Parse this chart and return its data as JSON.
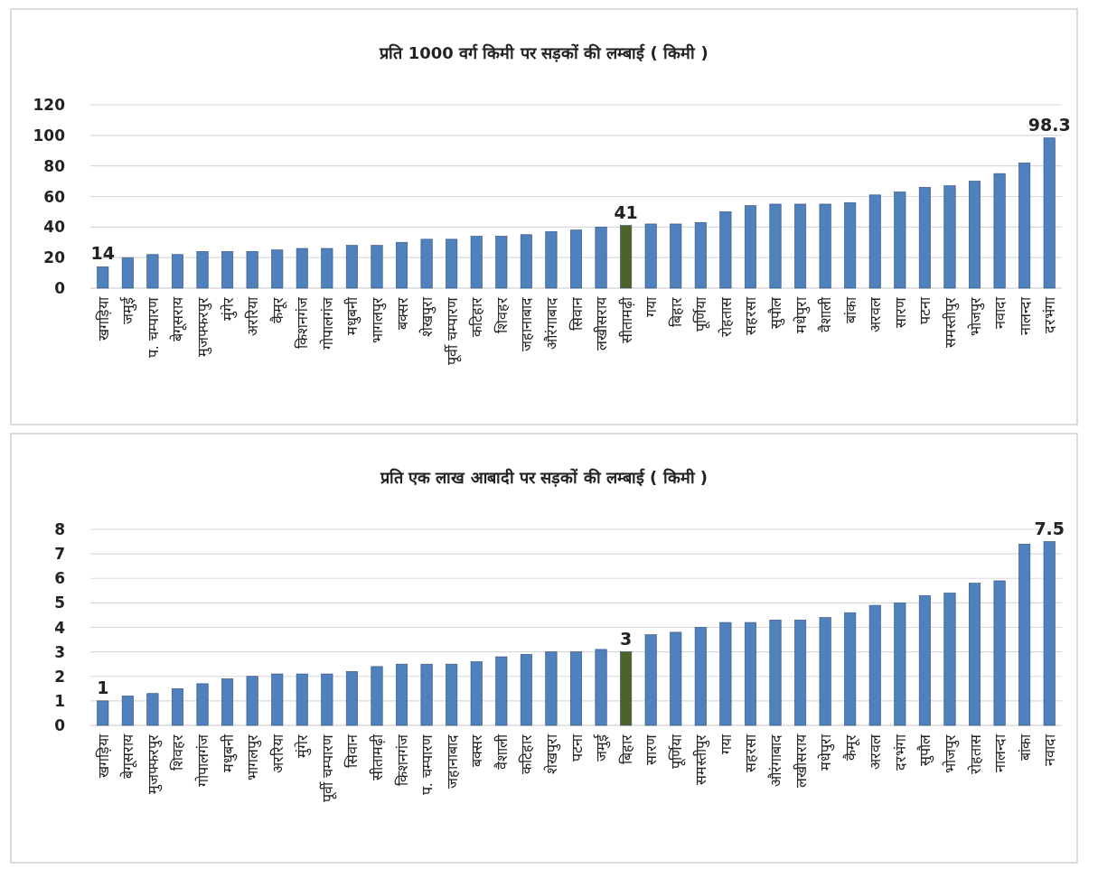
{
  "chart_data": [
    {
      "type": "bar",
      "title": "प्रति 1000 वर्ग किमी पर सड़कों की लम्बाई ( किमी )",
      "categories": [
        "खगड़िया",
        "जमुई",
        "प. चम्पारण",
        "बेगूसराय",
        "मुजफ्फरपुर",
        "मुंगेर",
        "अररिया",
        "कैमूर",
        "किशनगंज",
        "गोपालगंज",
        "मधुबनी",
        "भागलपुर",
        "बक्सर",
        "शेखपुरा",
        "पूर्वी चम्पारण",
        "कटिहार",
        "शिवहर",
        "जहानाबाद",
        "औरंगाबाद",
        "सिवान",
        "लखीसराय",
        "सीतामढ़ी",
        "गया",
        "बिहार",
        "पूर्णिया",
        "रोहतास",
        "सहरसा",
        "सुपौल",
        "मधेपुरा",
        "वैशाली",
        "बांका",
        "अरवल",
        "सारण",
        "पटना",
        "समस्तीपुर",
        "भोजपुर",
        "नवादा",
        "नालन्दा",
        "दरभंगा"
      ],
      "values": [
        14,
        20,
        22,
        22,
        24,
        24,
        24,
        25,
        26,
        26,
        28,
        28,
        30,
        32,
        32,
        34,
        34,
        35,
        37,
        38,
        40,
        41,
        42,
        42,
        43,
        50,
        54,
        55,
        55,
        55,
        56,
        61,
        63,
        66,
        67,
        70,
        75,
        82,
        98.3
      ],
      "colors": [
        "#4f81bd",
        "#4f81bd",
        "#4f81bd",
        "#4f81bd",
        "#4f81bd",
        "#4f81bd",
        "#4f81bd",
        "#4f81bd",
        "#4f81bd",
        "#4f81bd",
        "#4f81bd",
        "#4f81bd",
        "#4f81bd",
        "#4f81bd",
        "#4f81bd",
        "#4f81bd",
        "#4f81bd",
        "#4f81bd",
        "#4f81bd",
        "#4f81bd",
        "#4f81bd",
        "#4f6228",
        "#4f81bd",
        "#4f81bd",
        "#4f81bd",
        "#4f81bd",
        "#4f81bd",
        "#4f81bd",
        "#4f81bd",
        "#4f81bd",
        "#4f81bd",
        "#4f81bd",
        "#4f81bd",
        "#4f81bd",
        "#4f81bd",
        "#4f81bd",
        "#4f81bd",
        "#4f81bd",
        "#4f81bd"
      ],
      "value_labels": [
        "14",
        null,
        null,
        null,
        null,
        null,
        null,
        null,
        null,
        null,
        null,
        null,
        null,
        null,
        null,
        null,
        null,
        null,
        null,
        null,
        null,
        "41",
        null,
        null,
        null,
        null,
        null,
        null,
        null,
        null,
        null,
        null,
        null,
        null,
        null,
        null,
        null,
        null,
        "98.3"
      ],
      "ylim": [
        0,
        120
      ],
      "yticks": [
        0,
        20,
        40,
        60,
        80,
        100,
        120
      ],
      "grid": "y"
    },
    {
      "type": "bar",
      "title": "प्रति एक लाख आबादी पर सड़कों की लम्बाई ( किमी )",
      "categories": [
        "खगड़िया",
        "बेगूसराय",
        "मुजफ्फरपुर",
        "शिवहर",
        "गोपालगंज",
        "मधुबनी",
        "भागलपुर",
        "अररिया",
        "मुंगेर",
        "पूर्वी चम्पारण",
        "सिवान",
        "सीतामढ़ी",
        "किशनगंज",
        "प. चम्पारण",
        "जहानाबाद",
        "बक्सर",
        "वैशाली",
        "कटिहार",
        "शेखपुरा",
        "पटना",
        "जमुई",
        "बिहार",
        "सारण",
        "पूर्णिया",
        "समस्तीपुर",
        "गया",
        "सहरसा",
        "औरंगाबाद",
        "लखीसराय",
        "मधेपुरा",
        "कैमूर",
        "अरवल",
        "दरभंगा",
        "सुपौल",
        "भोजपुर",
        "रोहतास",
        "नालन्दा",
        "बांका",
        "नवादा"
      ],
      "values": [
        1,
        1.2,
        1.3,
        1.5,
        1.7,
        1.9,
        2.0,
        2.1,
        2.1,
        2.1,
        2.2,
        2.4,
        2.5,
        2.5,
        2.5,
        2.6,
        2.8,
        2.9,
        3.0,
        3.0,
        3.1,
        3,
        3.7,
        3.8,
        4.0,
        4.2,
        4.2,
        4.3,
        4.3,
        4.4,
        4.6,
        4.9,
        5.0,
        5.3,
        5.4,
        5.8,
        5.9,
        7.4,
        7.5
      ],
      "colors": [
        "#4f81bd",
        "#4f81bd",
        "#4f81bd",
        "#4f81bd",
        "#4f81bd",
        "#4f81bd",
        "#4f81bd",
        "#4f81bd",
        "#4f81bd",
        "#4f81bd",
        "#4f81bd",
        "#4f81bd",
        "#4f81bd",
        "#4f81bd",
        "#4f81bd",
        "#4f81bd",
        "#4f81bd",
        "#4f81bd",
        "#4f81bd",
        "#4f81bd",
        "#4f81bd",
        "#4f6228",
        "#4f81bd",
        "#4f81bd",
        "#4f81bd",
        "#4f81bd",
        "#4f81bd",
        "#4f81bd",
        "#4f81bd",
        "#4f81bd",
        "#4f81bd",
        "#4f81bd",
        "#4f81bd",
        "#4f81bd",
        "#4f81bd",
        "#4f81bd",
        "#4f81bd",
        "#4f81bd",
        "#4f81bd"
      ],
      "value_labels": [
        "1",
        null,
        null,
        null,
        null,
        null,
        null,
        null,
        null,
        null,
        null,
        null,
        null,
        null,
        null,
        null,
        null,
        null,
        null,
        null,
        null,
        "3",
        null,
        null,
        null,
        null,
        null,
        null,
        null,
        null,
        null,
        null,
        null,
        null,
        null,
        null,
        null,
        null,
        "7.5"
      ],
      "ylim": [
        0,
        8
      ],
      "yticks": [
        0,
        1,
        2,
        3,
        4,
        5,
        6,
        7,
        8
      ],
      "grid": "y"
    }
  ]
}
